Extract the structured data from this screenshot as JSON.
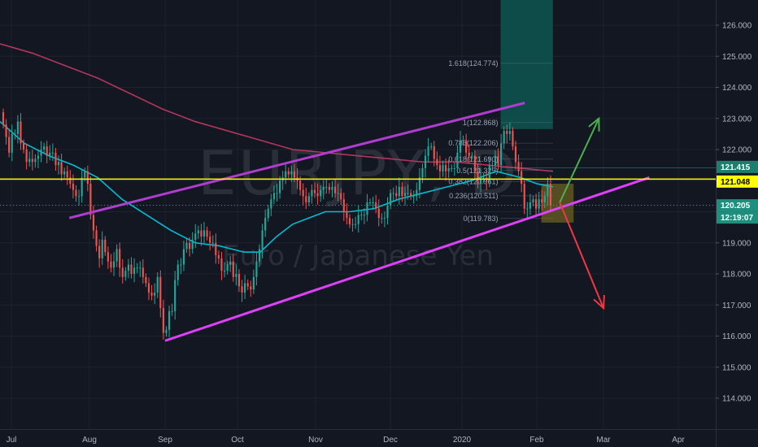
{
  "watermark": {
    "symbol": "EURJPY, D",
    "name": "Euro / Japanese Yen"
  },
  "colors": {
    "background": "#131722",
    "grid": "#1e222d",
    "up": "#26a69a",
    "down": "#ef5350",
    "ma_fast": "#00bcd4",
    "ma_slow": "#b2365c",
    "channel_upper": "#b03cd0",
    "channel_lower": "#e040fb",
    "level": "#ffff00",
    "arrow_up": "#4caf50",
    "arrow_down": "#f23645",
    "fib_zone": "#0e4f4c",
    "price_tag": "#26a69a"
  },
  "chart_data": {
    "type": "candlestick",
    "ylim": [
      113.6,
      126.8
    ],
    "y_ticks": [
      "126.000",
      "125.000",
      "124.000",
      "123.000",
      "122.000",
      "121.000",
      "120.000",
      "119.000",
      "118.000",
      "117.000",
      "116.000",
      "115.000",
      "114.000"
    ],
    "x_ticks": [
      "Jul",
      "Aug",
      "Sep",
      "Oct",
      "Nov",
      "Dec",
      "2020",
      "Feb",
      "Mar",
      "Apr"
    ],
    "horizontal_level": {
      "value": 121.048,
      "label": "121.048"
    },
    "price_labels": [
      {
        "value": 121.415,
        "label": "121.415",
        "color": "#26a69a"
      },
      {
        "value": 120.205,
        "label": "120.205",
        "color": "#26a69a"
      }
    ],
    "countdown": "12:19:07",
    "fibonacci": [
      {
        "label": "1.618(124.774)",
        "value": 124.774
      },
      {
        "label": "1(122.868)",
        "value": 122.868
      },
      {
        "label": "0.786(122.206)",
        "value": 122.206
      },
      {
        "label": "0.618(121.690)",
        "value": 121.69
      },
      {
        "label": "0.5(121.325)",
        "value": 121.325
      },
      {
        "label": "0.382(120.961)",
        "value": 120.961
      },
      {
        "label": "0.236(120.511)",
        "value": 120.511
      },
      {
        "label": "0(119.783)",
        "value": 119.783
      }
    ],
    "channel": {
      "upper": [
        {
          "date": "Jul 24",
          "price": 119.8
        },
        {
          "date": "Jan 27",
          "price": 123.5
        }
      ],
      "lower": [
        {
          "date": "Sep 1",
          "price": 115.85
        },
        {
          "date": "Mar 20",
          "price": 121.1
        }
      ]
    },
    "arrows": [
      {
        "direction": "up",
        "from": {
          "date": "Feb 11",
          "price": 120.3
        },
        "to": {
          "date": "Feb 28",
          "price": 123.0
        }
      },
      {
        "direction": "down",
        "from": {
          "date": "Feb 11",
          "price": 120.3
        },
        "to": {
          "date": "Mar 1",
          "price": 116.9
        }
      }
    ],
    "ma_fast": [
      [
        0,
        122.9
      ],
      [
        30,
        122.2
      ],
      [
        60,
        121.8
      ],
      [
        90,
        121.5
      ],
      [
        120,
        121.1
      ],
      [
        150,
        120.4
      ],
      [
        180,
        119.9
      ],
      [
        210,
        119.4
      ],
      [
        240,
        119.0
      ],
      [
        270,
        118.9
      ],
      [
        300,
        118.7
      ],
      [
        320,
        118.7
      ],
      [
        340,
        119.2
      ],
      [
        360,
        119.6
      ],
      [
        380,
        119.8
      ],
      [
        400,
        120.0
      ],
      [
        430,
        120.0
      ],
      [
        460,
        120.1
      ],
      [
        490,
        120.4
      ],
      [
        520,
        120.6
      ],
      [
        550,
        120.8
      ],
      [
        580,
        121.0
      ],
      [
        610,
        121.3
      ],
      [
        640,
        121.1
      ],
      [
        660,
        120.9
      ],
      [
        680,
        120.8
      ]
    ],
    "ma_slow": [
      [
        0,
        125.4
      ],
      [
        40,
        125.1
      ],
      [
        80,
        124.7
      ],
      [
        120,
        124.3
      ],
      [
        160,
        123.8
      ],
      [
        200,
        123.3
      ],
      [
        240,
        122.9
      ],
      [
        280,
        122.6
      ],
      [
        320,
        122.3
      ],
      [
        360,
        122.0
      ],
      [
        400,
        121.9
      ],
      [
        440,
        121.8
      ],
      [
        480,
        121.7
      ],
      [
        520,
        121.6
      ],
      [
        560,
        121.6
      ],
      [
        600,
        121.5
      ],
      [
        640,
        121.4
      ],
      [
        680,
        121.3
      ]
    ],
    "candles": [
      [
        123.2,
        122.8
      ],
      [
        122.8,
        122.4
      ],
      [
        122.4,
        121.9
      ],
      [
        121.9,
        122.5
      ],
      [
        122.5,
        122.5
      ],
      [
        122.5,
        122.9
      ],
      [
        122.9,
        122.2
      ],
      [
        122.2,
        122.0
      ],
      [
        122.0,
        121.6
      ],
      [
        121.6,
        121.7
      ],
      [
        121.7,
        121.6
      ],
      [
        121.6,
        121.7
      ],
      [
        121.7,
        121.8
      ],
      [
        121.8,
        122.0
      ],
      [
        122.0,
        122.1
      ],
      [
        122.1,
        121.8
      ],
      [
        121.8,
        121.9
      ],
      [
        121.9,
        121.9
      ],
      [
        121.9,
        121.5
      ],
      [
        121.5,
        121.6
      ],
      [
        121.6,
        121.2
      ],
      [
        121.2,
        121.3
      ],
      [
        121.3,
        121.1
      ],
      [
        121.1,
        120.9
      ],
      [
        120.9,
        120.7
      ],
      [
        120.7,
        120.5
      ],
      [
        120.5,
        120.5
      ],
      [
        120.5,
        121.1
      ],
      [
        121.1,
        121.3
      ],
      [
        121.3,
        120.9
      ],
      [
        120.9,
        119.9
      ],
      [
        119.9,
        119.4
      ],
      [
        119.4,
        118.9
      ],
      [
        118.9,
        118.5
      ],
      [
        118.5,
        119.1
      ],
      [
        119.1,
        118.7
      ],
      [
        118.7,
        118.4
      ],
      [
        118.4,
        118.2
      ],
      [
        118.2,
        118.4
      ],
      [
        118.4,
        118.8
      ],
      [
        118.8,
        118.2
      ],
      [
        118.2,
        117.9
      ],
      [
        117.9,
        118.1
      ],
      [
        118.1,
        118.3
      ],
      [
        118.3,
        118.0
      ],
      [
        118.0,
        118.2
      ],
      [
        118.2,
        118.2
      ],
      [
        118.2,
        118.2
      ],
      [
        118.2,
        117.9
      ],
      [
        117.9,
        117.7
      ],
      [
        117.7,
        117.4
      ],
      [
        117.4,
        117.3
      ],
      [
        117.3,
        117.4
      ],
      [
        117.4,
        117.9
      ],
      [
        117.9,
        116.9
      ],
      [
        116.9,
        116.1
      ],
      [
        116.1,
        116.2
      ],
      [
        116.2,
        116.8
      ],
      [
        116.8,
        116.8
      ],
      [
        116.8,
        117.8
      ],
      [
        117.8,
        118.3
      ],
      [
        118.3,
        118.3
      ],
      [
        118.3,
        118.8
      ],
      [
        118.8,
        119.0
      ],
      [
        119.0,
        118.8
      ],
      [
        118.8,
        119.1
      ],
      [
        119.1,
        119.3
      ],
      [
        119.3,
        119.4
      ],
      [
        119.4,
        119.2
      ],
      [
        119.2,
        119.4
      ],
      [
        119.4,
        119.2
      ],
      [
        119.2,
        119.0
      ],
      [
        119.0,
        119.0
      ],
      [
        119.0,
        118.6
      ],
      [
        118.6,
        118.5
      ],
      [
        118.5,
        118.1
      ],
      [
        118.1,
        118.1
      ],
      [
        118.1,
        118.3
      ],
      [
        118.3,
        118.4
      ],
      [
        118.4,
        117.9
      ],
      [
        117.9,
        118.0
      ],
      [
        118.0,
        117.6
      ],
      [
        117.6,
        117.4
      ],
      [
        117.4,
        117.7
      ],
      [
        117.7,
        117.6
      ],
      [
        117.6,
        117.5
      ],
      [
        117.5,
        117.9
      ],
      [
        117.9,
        118.4
      ],
      [
        118.4,
        118.8
      ],
      [
        118.8,
        119.4
      ],
      [
        119.4,
        119.8
      ],
      [
        119.8,
        120.1
      ],
      [
        120.1,
        120.4
      ],
      [
        120.4,
        120.6
      ],
      [
        120.6,
        120.6
      ],
      [
        120.6,
        121.0
      ],
      [
        121.0,
        121.1
      ],
      [
        121.1,
        121.3
      ],
      [
        121.3,
        121.2
      ],
      [
        121.2,
        121.3
      ],
      [
        121.3,
        121.1
      ],
      [
        121.1,
        121.0
      ],
      [
        121.0,
        120.7
      ],
      [
        120.7,
        120.5
      ],
      [
        120.5,
        120.3
      ],
      [
        120.3,
        120.5
      ],
      [
        120.5,
        120.7
      ],
      [
        120.7,
        120.6
      ],
      [
        120.6,
        120.5
      ],
      [
        120.5,
        120.7
      ],
      [
        120.7,
        120.8
      ],
      [
        120.8,
        120.8
      ],
      [
        120.8,
        120.7
      ],
      [
        120.7,
        120.8
      ],
      [
        120.8,
        120.6
      ],
      [
        120.6,
        120.6
      ],
      [
        120.6,
        120.4
      ],
      [
        120.4,
        120.0
      ],
      [
        120.0,
        119.8
      ],
      [
        119.8,
        119.6
      ],
      [
        119.6,
        119.6
      ],
      [
        119.6,
        119.6
      ],
      [
        119.6,
        119.9
      ],
      [
        119.9,
        119.9
      ],
      [
        119.9,
        119.9
      ],
      [
        119.9,
        120.3
      ],
      [
        120.3,
        120.3
      ],
      [
        120.3,
        120.3
      ],
      [
        120.3,
        120.1
      ],
      [
        120.1,
        119.8
      ],
      [
        119.8,
        119.8
      ],
      [
        119.8,
        119.8
      ],
      [
        119.8,
        120.2
      ],
      [
        120.2,
        120.6
      ],
      [
        120.6,
        120.6
      ],
      [
        120.6,
        120.5
      ],
      [
        120.5,
        120.8
      ],
      [
        120.8,
        120.5
      ],
      [
        120.5,
        120.6
      ],
      [
        120.6,
        120.6
      ],
      [
        120.6,
        120.5
      ],
      [
        120.5,
        120.5
      ],
      [
        120.5,
        120.7
      ],
      [
        120.7,
        121.1
      ],
      [
        121.1,
        121.4
      ],
      [
        121.4,
        121.8
      ],
      [
        121.8,
        122.1
      ],
      [
        122.1,
        122.1
      ],
      [
        122.1,
        121.7
      ],
      [
        121.7,
        121.5
      ],
      [
        121.5,
        121.3
      ],
      [
        121.3,
        121.5
      ],
      [
        121.5,
        121.3
      ],
      [
        121.3,
        121.4
      ],
      [
        121.4,
        121.4
      ],
      [
        121.4,
        121.4
      ],
      [
        121.4,
        121.9
      ],
      [
        121.9,
        122.3
      ],
      [
        122.3,
        122.3
      ],
      [
        122.3,
        121.9
      ],
      [
        121.9,
        121.8
      ],
      [
        121.8,
        121.8
      ],
      [
        121.8,
        121.3
      ],
      [
        121.3,
        120.9
      ],
      [
        120.9,
        121.1
      ],
      [
        121.1,
        121.1
      ],
      [
        121.1,
        121.0
      ],
      [
        121.0,
        121.5
      ],
      [
        121.5,
        121.5
      ],
      [
        121.5,
        121.8
      ],
      [
        121.8,
        121.5
      ],
      [
        121.5,
        122.2
      ],
      [
        122.2,
        122.6
      ],
      [
        122.6,
        122.5
      ],
      [
        122.5,
        122.6
      ],
      [
        122.6,
        122.1
      ],
      [
        122.1,
        121.6
      ],
      [
        121.6,
        121.3
      ],
      [
        121.3,
        120.9
      ],
      [
        120.9,
        120.1
      ],
      [
        120.1,
        120.1
      ],
      [
        120.1,
        120.3
      ],
      [
        120.3,
        120.4
      ],
      [
        120.4,
        120.1
      ],
      [
        120.1,
        120.4
      ],
      [
        120.4,
        120.3
      ],
      [
        120.3,
        120.5
      ],
      [
        120.5,
        120.9
      ],
      [
        120.9,
        120.2
      ]
    ]
  }
}
